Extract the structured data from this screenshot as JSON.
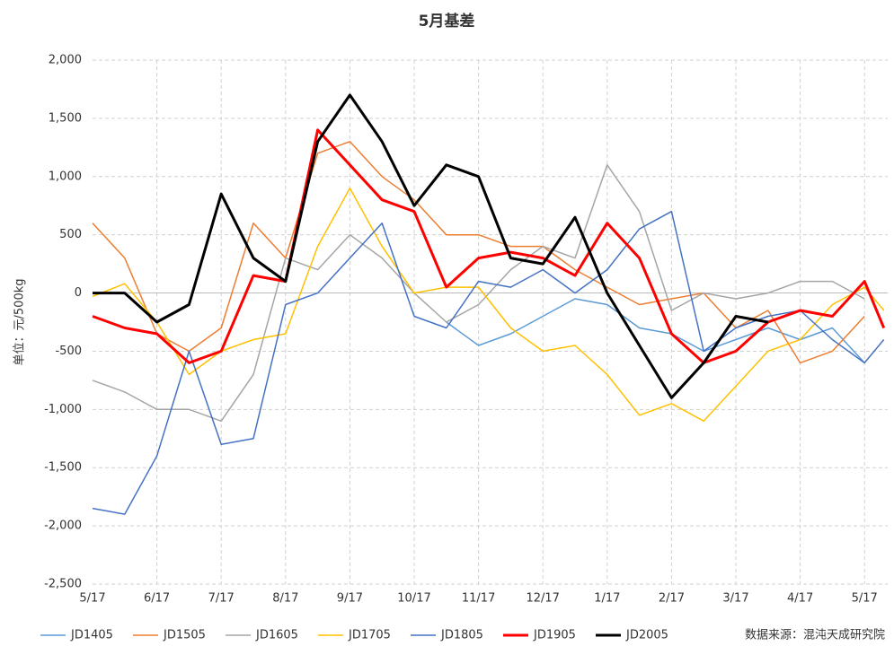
{
  "chart_data": {
    "type": "line",
    "title": "5月基差",
    "y_label": "单位：元/500kg",
    "source": "数据来源：混沌天成研究院",
    "x": [
      0,
      0.5,
      1,
      1.5,
      2,
      2.5,
      3,
      3.5,
      4,
      4.5,
      5,
      5.5,
      6,
      6.5,
      7,
      7.5,
      8,
      8.5,
      9,
      9.5,
      10,
      10.5,
      11,
      11.5,
      12,
      12.3
    ],
    "xlim": [
      0,
      12.36
    ],
    "xticks": [
      {
        "value": 0,
        "label": "5/17"
      },
      {
        "value": 1,
        "label": "6/17"
      },
      {
        "value": 2,
        "label": "7/17"
      },
      {
        "value": 3,
        "label": "8/17"
      },
      {
        "value": 4,
        "label": "9/17"
      },
      {
        "value": 5,
        "label": "10/17"
      },
      {
        "value": 6,
        "label": "11/17"
      },
      {
        "value": 7,
        "label": "12/17"
      },
      {
        "value": 8,
        "label": "1/17"
      },
      {
        "value": 9,
        "label": "2/17"
      },
      {
        "value": 10,
        "label": "3/17"
      },
      {
        "value": 11,
        "label": "4/17"
      },
      {
        "value": 12,
        "label": "5/17"
      }
    ],
    "ylim": [
      -2500,
      2000
    ],
    "yticks": [
      {
        "value": -2500,
        "label": "-2,500"
      },
      {
        "value": -2000,
        "label": "-2,000"
      },
      {
        "value": -1500,
        "label": "-1,500"
      },
      {
        "value": -1000,
        "label": "-1,000"
      },
      {
        "value": -500,
        "label": "-500"
      },
      0,
      500,
      {
        "value": 1000,
        "label": "1,000"
      },
      {
        "value": 1500,
        "label": "1,500"
      },
      {
        "value": 2000,
        "label": "2,000"
      }
    ],
    "grid": true,
    "series": [
      {
        "name": "JD1405",
        "color": "#5b9bd5",
        "line_width": 1.5,
        "values": [
          null,
          null,
          null,
          null,
          null,
          null,
          null,
          null,
          null,
          null,
          null,
          -250,
          -450,
          -350,
          -200,
          -50,
          -100,
          -300,
          -350,
          -500,
          -400,
          -300,
          -400,
          -300,
          -600,
          null
        ]
      },
      {
        "name": "JD1505",
        "color": "#ed7d31",
        "line_width": 1.5,
        "values": [
          600,
          300,
          -350,
          -500,
          -300,
          600,
          300,
          1200,
          1300,
          1000,
          800,
          500,
          500,
          400,
          400,
          200,
          50,
          -100,
          -50,
          0,
          -300,
          -150,
          -600,
          -500,
          -200,
          null
        ]
      },
      {
        "name": "JD1605",
        "color": "#a5a5a5",
        "line_width": 1.5,
        "values": [
          -750,
          -850,
          -1000,
          -1000,
          -1100,
          -700,
          300,
          200,
          500,
          300,
          0,
          -250,
          -100,
          200,
          400,
          300,
          1100,
          700,
          -150,
          0,
          -50,
          0,
          100,
          100,
          -50,
          null
        ]
      },
      {
        "name": "JD1705",
        "color": "#ffc000",
        "line_width": 1.5,
        "values": [
          -30,
          80,
          -250,
          -700,
          -500,
          -400,
          -350,
          400,
          900,
          400,
          0,
          50,
          50,
          -300,
          -500,
          -450,
          -700,
          -1050,
          -950,
          -1100,
          -800,
          -500,
          -400,
          -100,
          50,
          -150
        ]
      },
      {
        "name": "JD1805",
        "color": "#4472c4",
        "line_width": 1.5,
        "values": [
          -1850,
          -1900,
          -1400,
          -500,
          -1300,
          -1250,
          -100,
          0,
          300,
          600,
          -200,
          -300,
          100,
          50,
          200,
          0,
          200,
          550,
          700,
          -500,
          -300,
          -200,
          -150,
          -400,
          -600,
          -400
        ]
      },
      {
        "name": "JD1905",
        "color": "#ff0000",
        "line_width": 3,
        "values": [
          -200,
          -300,
          -350,
          -600,
          -500,
          150,
          100,
          1400,
          1100,
          800,
          700,
          50,
          300,
          350,
          300,
          150,
          600,
          300,
          -350,
          -600,
          -500,
          -250,
          -150,
          -200,
          100,
          -300
        ]
      },
      {
        "name": "JD2005",
        "color": "#000000",
        "line_width": 3,
        "values": [
          0,
          0,
          -250,
          -100,
          850,
          300,
          100,
          1300,
          1700,
          1300,
          750,
          1100,
          1000,
          300,
          250,
          650,
          0,
          -450,
          -900,
          -600,
          -200,
          -250,
          null,
          null,
          null,
          null
        ]
      }
    ]
  }
}
